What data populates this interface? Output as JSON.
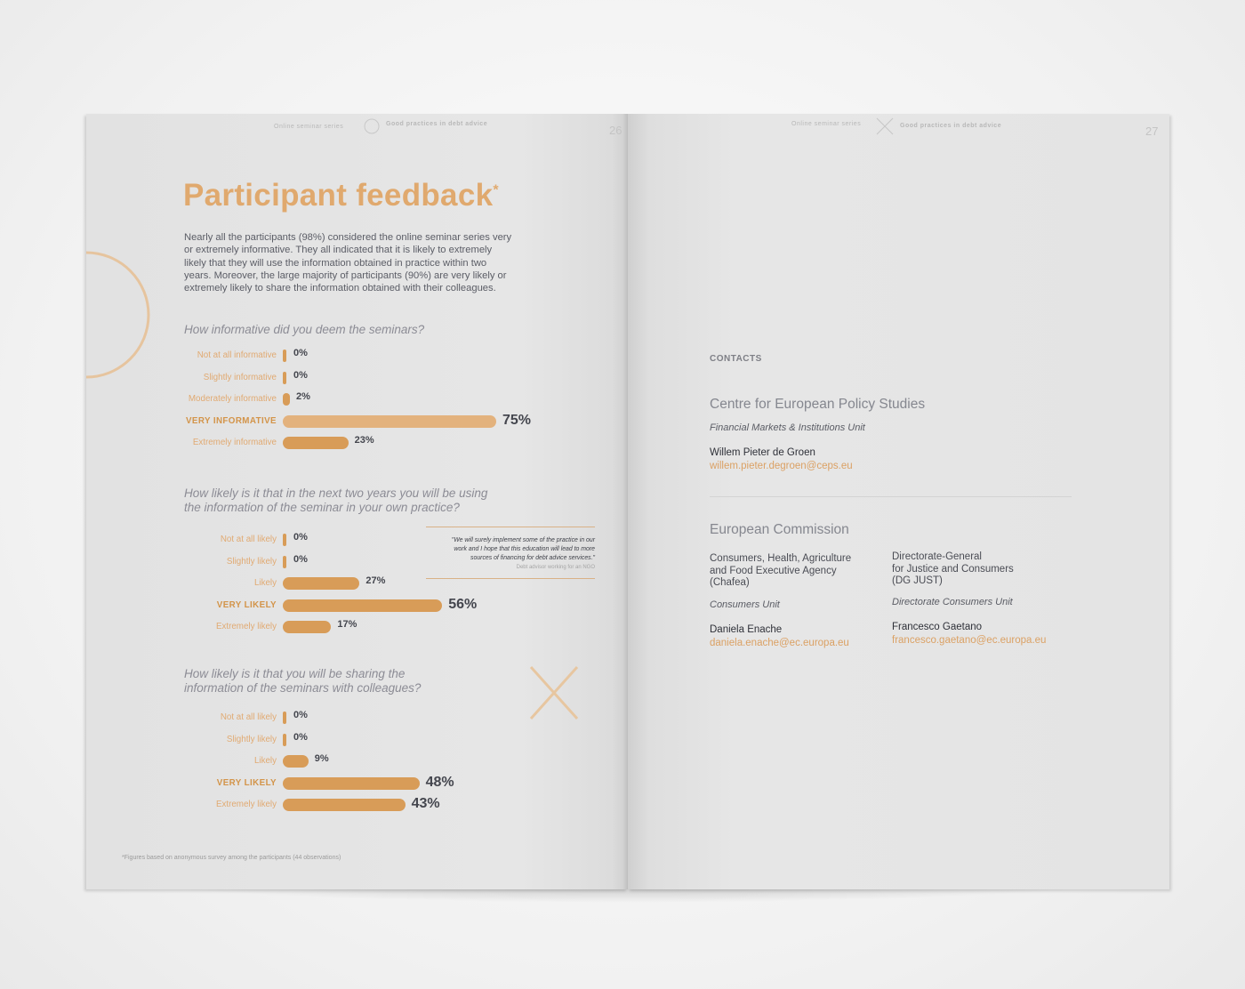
{
  "left_page": {
    "header_left": "Online seminar series",
    "header_right": "Good practices in debt advice",
    "page_number": "26",
    "title": "Participant feedback",
    "title_mark": "*",
    "intro_lines": [
      "Nearly all the participants (98%) considered the online seminar series very",
      "or extremely informative. They all indicated that it is likely to extremely",
      "likely that they will use the information obtained in practice within two",
      "years. Moreover, the large majority of participants (90%) are very likely or",
      "extremely likely to share the information obtained with their colleagues."
    ],
    "quote": {
      "lines": [
        "\"We will surely implement some of the practice in our",
        "work and I hope that this education will lead to more",
        "sources of financing for debt advice services.\""
      ],
      "source": "Debt advisor working for an NGO"
    },
    "footnote": "*Figures based on anonymous survey among the participants (44 observations)"
  },
  "chart_data": [
    {
      "type": "bar",
      "title": "How informative did you deem the seminars?",
      "categories": [
        "Not at all informative",
        "Slightly informative",
        "Moderately informative",
        "VERY INFORMATIVE",
        "Extremely informative"
      ],
      "values": [
        0,
        0,
        2,
        75,
        23
      ],
      "value_labels": [
        "0%",
        "0%",
        "2%",
        "75%",
        "23%"
      ],
      "highlight_index": 3,
      "xlim": [
        0,
        100
      ]
    },
    {
      "type": "bar",
      "title_lines": [
        "How likely is it that in the next two years you will be using",
        "the information of the seminar in your own practice?"
      ],
      "categories": [
        "Not at all likely",
        "Slightly likely",
        "Likely",
        "VERY LIKELY",
        "Extremely likely"
      ],
      "values": [
        0,
        0,
        27,
        56,
        17
      ],
      "value_labels": [
        "0%",
        "0%",
        "27%",
        "56%",
        "17%"
      ],
      "highlight_index": 3,
      "xlim": [
        0,
        100
      ]
    },
    {
      "type": "bar",
      "title_lines": [
        "How likely is it that you will be sharing the",
        "information of the seminars with colleagues?"
      ],
      "categories": [
        "Not at all likely",
        "Slightly likely",
        "Likely",
        "VERY LIKELY",
        "Extremely likely"
      ],
      "values": [
        0,
        0,
        9,
        48,
        43
      ],
      "value_labels": [
        "0%",
        "0%",
        "9%",
        "48%",
        "43%"
      ],
      "highlight_index": 3,
      "xlim": [
        0,
        100
      ]
    }
  ],
  "right_page": {
    "header_left": "Online seminar series",
    "header_right": "Good practices in debt advice",
    "page_number": "27",
    "contacts_label": "CONTACTS",
    "ceps": {
      "org": "Centre for European Policy Studies",
      "unit": "Financial Markets & Institutions Unit",
      "name": "Willem Pieter de Groen",
      "email": "willem.pieter.degroen@ceps.eu"
    },
    "ec": {
      "org": "European Commission",
      "chafea": {
        "agency_lines": [
          "Consumers, Health, Agriculture",
          "and Food Executive Agency",
          "(Chafea)"
        ],
        "unit": "Consumers Unit",
        "name": "Daniela Enache",
        "email": "daniela.enache@ec.europa.eu"
      },
      "dgjust": {
        "agency_lines": [
          "Directorate-General",
          "for Justice and Consumers",
          "(DG JUST)"
        ],
        "unit": "Directorate Consumers Unit",
        "name": "Francesco Gaetano",
        "email": "francesco.gaetano@ec.europa.eu"
      }
    }
  },
  "colors": {
    "accent": "#d89c58",
    "accent_light": "#e3b27d",
    "title": "#e0a96e",
    "text": "#5b5d66"
  },
  "icons": [
    "circle-outline-icon",
    "x-cross-icon"
  ]
}
